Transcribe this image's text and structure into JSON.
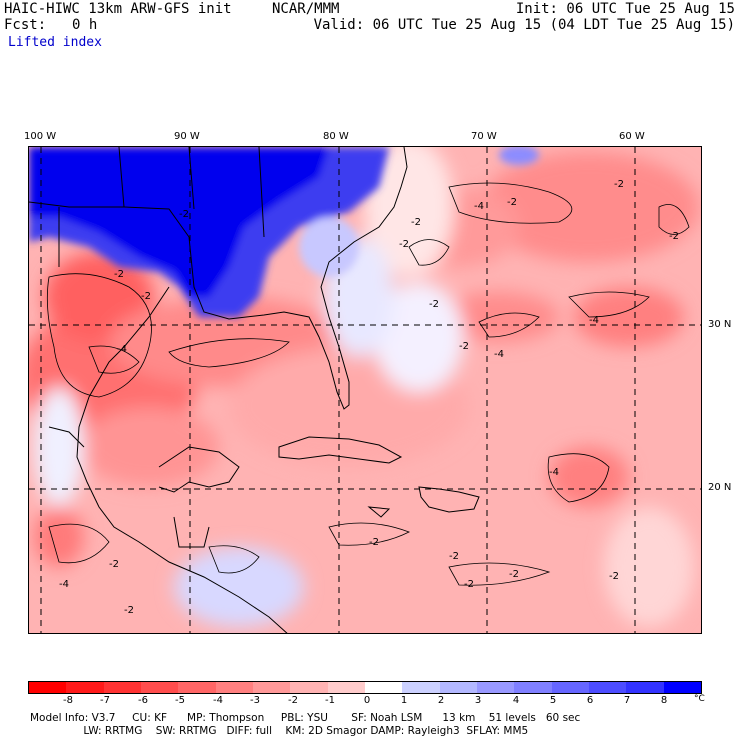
{
  "header": {
    "model": "HAIC-HIWC 13km ARW-GFS init",
    "org": "NCAR/MMM",
    "fcst_label": "Fcst:",
    "fcst_value": "0 h",
    "init": "Init: 06 UTC Tue 25 Aug 15",
    "valid": "Valid: 06 UTC Tue 25 Aug 15 (04 LDT Tue 25 Aug 15)",
    "field": "Lifted index"
  },
  "map": {
    "lon_labels": [
      "100 W",
      "90 W",
      "80 W",
      "70 W",
      "60 W"
    ],
    "lat_labels": [
      "30 N",
      "20 N"
    ],
    "contour_labels": [
      "-2",
      "-4"
    ]
  },
  "colorbar": {
    "labels": [
      "-8",
      "-7",
      "-6",
      "-5",
      "-4",
      "-3",
      "-2",
      "-1",
      "0",
      "1",
      "2",
      "3",
      "4",
      "5",
      "6",
      "7",
      "8"
    ],
    "unit": "°C",
    "colors": [
      "#ff0000",
      "#ff1a1a",
      "#ff3333",
      "#ff4d4d",
      "#ff6666",
      "#ff8080",
      "#ff9999",
      "#ffb3b3",
      "#ffcccc",
      "#ffffff",
      "#ccd1ff",
      "#b3b8ff",
      "#9999ff",
      "#8080ff",
      "#6666ff",
      "#4d4dff",
      "#3333ff",
      "#0000ff"
    ]
  },
  "footer": {
    "line1": "Model Info: V3.7     CU: KF      MP: Thompson     PBL: YSU       SF: Noah LSM      13 km    51 levels   60 sec",
    "line2": "                LW: RRTMG    SW: RRTMG   DIFF: full    KM: 2D Smagor DAMP: Rayleigh3  SFLAY: MM5"
  }
}
